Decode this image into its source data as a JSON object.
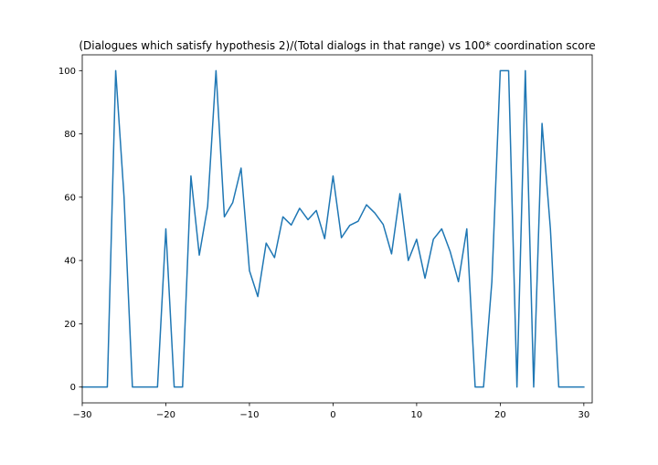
{
  "chart_data": {
    "type": "line",
    "title": "(Dialogues which satisfy hypothesis 2)/(Total dialogs in that range) vs 100* coordination score",
    "xlabel": "",
    "ylabel": "",
    "xlim": [
      -30,
      31
    ],
    "ylim": [
      -5,
      105
    ],
    "x_ticks": [
      -30,
      -20,
      -10,
      0,
      10,
      20,
      30
    ],
    "y_ticks": [
      0,
      20,
      40,
      60,
      80,
      100
    ],
    "grid": false,
    "series": [
      {
        "color": "#1f77b4",
        "x": [
          -30,
          -29,
          -28,
          -27,
          -26,
          -25,
          -24,
          -23,
          -22,
          -21,
          -20,
          -19,
          -18,
          -17,
          -16,
          -15,
          -14,
          -13,
          -12,
          -11,
          -10,
          -9,
          -8,
          -7,
          -6,
          -5,
          -4,
          -3,
          -2,
          -1,
          0,
          1,
          2,
          3,
          4,
          5,
          6,
          7,
          8,
          9,
          10,
          11,
          12,
          13,
          14,
          15,
          16,
          17,
          18,
          19,
          20,
          21,
          22,
          23,
          24,
          25,
          26,
          27,
          28,
          29,
          30
        ],
        "y": [
          0,
          0,
          0,
          0,
          100,
          60,
          0,
          0,
          0,
          0,
          50,
          0,
          0,
          66.7,
          41.7,
          57.1,
          100,
          53.8,
          58.3,
          69.2,
          36.8,
          28.6,
          45.5,
          40.9,
          53.8,
          51.2,
          56.5,
          52.9,
          55.8,
          46.9,
          66.7,
          47.2,
          51.1,
          52.4,
          57.6,
          55,
          51.4,
          42.1,
          61.1,
          40,
          46.7,
          34.4,
          46.7,
          50,
          42.9,
          33.3,
          50,
          0,
          0,
          33.3,
          100,
          100,
          0,
          100,
          0,
          83.3,
          50,
          0,
          0,
          0,
          0
        ]
      }
    ]
  }
}
